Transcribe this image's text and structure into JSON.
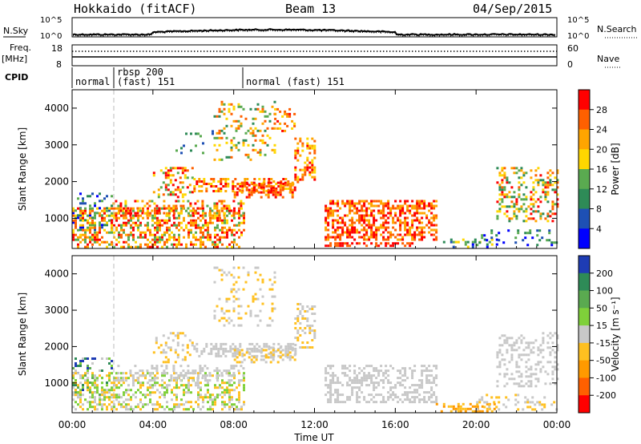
{
  "header": {
    "station": "Hokkaido (fitACF)",
    "beam": "Beam 13",
    "date": "04/Sep/2015"
  },
  "noise_panel": {
    "left_label": "N.Sky",
    "right_label": "N.Search",
    "tick_hi": "10^5",
    "tick_lo": "10^0"
  },
  "freq_panel": {
    "left_label_1": "Freq.",
    "left_label_2": "[MHz]",
    "right_label": "Nave",
    "left_ticks": [
      "18",
      "8"
    ],
    "right_ticks": [
      "60",
      "0"
    ]
  },
  "cpid_panel": {
    "label": "CPID",
    "segments": [
      "normal",
      "rbsp 200",
      "(fast) 151",
      "normal (fast) 151"
    ]
  },
  "chart_data": [
    {
      "type": "heatmap",
      "title": "",
      "ylabel": "Slant Range [km]",
      "xlabel": "",
      "x_ticks": [
        "00:00",
        "04:00",
        "08:00",
        "12:00",
        "16:00",
        "20:00",
        "00:00"
      ],
      "y_ticks": [
        "1000",
        "2000",
        "3000",
        "4000"
      ],
      "ylim": [
        180,
        4500
      ],
      "colorbar": {
        "label": "Power [dB]",
        "ticks": [
          "4",
          "8",
          "12",
          "16",
          "20",
          "24",
          "28"
        ],
        "colors": [
          "#0000ff",
          "#1e50b4",
          "#2e8b57",
          "#5aaa50",
          "#ffd700",
          "#ffa500",
          "#ff6000",
          "#ff0000"
        ]
      }
    },
    {
      "type": "heatmap",
      "title": "",
      "ylabel": "Slant Range [km]",
      "xlabel": "Time UT",
      "x_ticks": [
        "00:00",
        "04:00",
        "08:00",
        "12:00",
        "16:00",
        "20:00",
        "00:00"
      ],
      "y_ticks": [
        "1000",
        "2000",
        "3000",
        "4000"
      ],
      "ylim": [
        180,
        4500
      ],
      "colorbar": {
        "label": "Velocity [m s⁻¹]",
        "ticks": [
          "200",
          "100",
          "50",
          "15",
          "-15",
          "-50",
          "-100",
          "-200"
        ],
        "colors": [
          "#1e3cb4",
          "#2e8b57",
          "#5aaa50",
          "#7fd03a",
          "#c8c8c8",
          "#ffc020",
          "#ff9a00",
          "#ff6000",
          "#ff0000"
        ]
      }
    }
  ]
}
